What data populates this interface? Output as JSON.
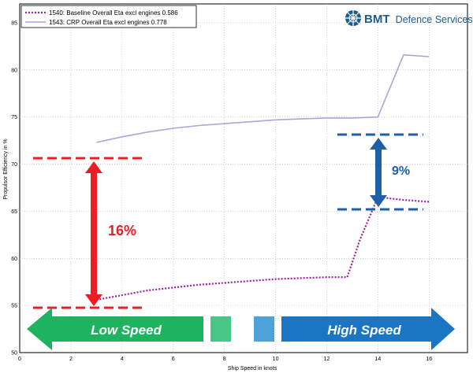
{
  "brand": {
    "name": "BMT",
    "suffix": "Defence Services",
    "color": "#1d5d8c"
  },
  "annotations": {
    "low_gap": "16%",
    "high_gap": "9%",
    "low_speed": "Low Speed",
    "high_speed": "High Speed"
  },
  "colors": {
    "baseline": "#a020a0",
    "crp": "#a9a6dd",
    "red": "#ee1c24",
    "blue": "#1f5fa8",
    "green_arrow": "#1db35f",
    "blue_arrow": "#1a76c4"
  },
  "chart_data": {
    "type": "line",
    "title": "",
    "xlabel": "Ship Speed in knots",
    "ylabel": "Propulsor Efficiency in %",
    "xlim": [
      0,
      17.5
    ],
    "ylim": [
      50,
      87
    ],
    "xticks": [
      0,
      2,
      4,
      6,
      8,
      10,
      12,
      14,
      16
    ],
    "yticks": [
      50,
      55,
      60,
      65,
      70,
      75,
      80,
      85
    ],
    "grid": true,
    "legend_position": "top-left",
    "series": [
      {
        "name": "1540:  Baseline Overall Eta excl engines  0.586",
        "style": "dotted",
        "x": [
          3,
          4,
          5,
          6,
          7,
          8,
          9,
          10,
          11,
          12,
          12.8,
          13.3,
          14,
          15,
          16
        ],
        "y": [
          55.6,
          56.1,
          56.6,
          56.9,
          57.2,
          57.4,
          57.6,
          57.8,
          57.9,
          58.0,
          58.0,
          62,
          66.5,
          66.2,
          66.0
        ]
      },
      {
        "name": "1543:  CRP Overall Eta excl engines  0.778",
        "style": "solid",
        "x": [
          3,
          4,
          5,
          6,
          7,
          8,
          9,
          10,
          11,
          12,
          13,
          14,
          15,
          16
        ],
        "y": [
          72.3,
          72.9,
          73.4,
          73.8,
          74.1,
          74.3,
          74.5,
          74.7,
          74.8,
          74.9,
          74.9,
          75.0,
          81.6,
          81.4
        ]
      }
    ]
  }
}
